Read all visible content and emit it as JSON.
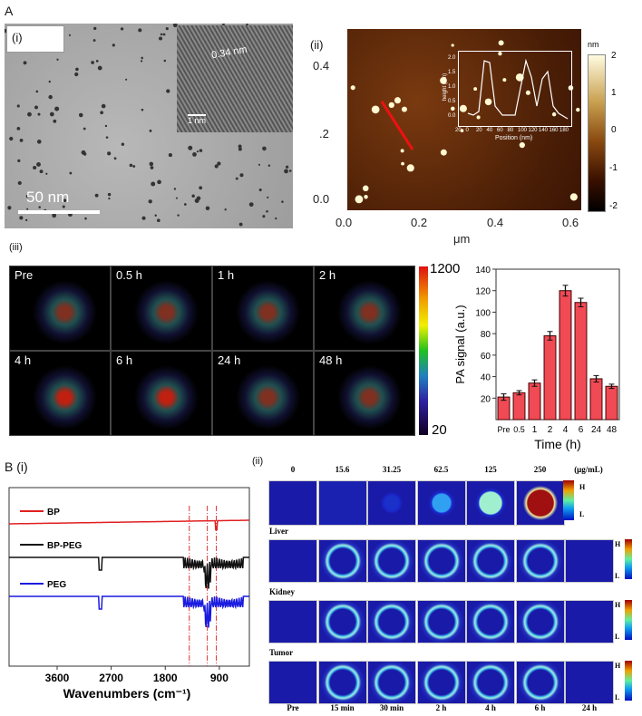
{
  "panel_a": {
    "label": "A",
    "tem": {
      "label": "(i)",
      "scale_bar": "50 nm",
      "inset_spacing": "0.34 nm",
      "inset_scale": "1 nm"
    },
    "afm": {
      "label": "(ii)",
      "y_ticks": [
        "0.4",
        ".2",
        "0.0"
      ],
      "x_ticks": [
        "0.0",
        "0.2",
        "0.4",
        "0.6"
      ],
      "x_unit": "μm",
      "colorbar_unit": "nm",
      "colorbar_ticks": [
        "2",
        "1",
        "0",
        "-1",
        "-2"
      ],
      "inset": {
        "ylabel": "height (nm)",
        "xlabel": "Position (nm)",
        "y_ticks": [
          "2.0",
          "1.5",
          "1.0",
          "0.5",
          "0.0"
        ],
        "x_ticks": [
          "20",
          "0",
          "20",
          "40",
          "60",
          "80",
          "100",
          "120",
          "140",
          "160",
          "180"
        ]
      }
    },
    "pa": {
      "label": "(iii)",
      "frames": [
        "Pre",
        "0.5 h",
        "1 h",
        "2 h",
        "4 h",
        "6 h",
        "24 h",
        "48 h"
      ],
      "colorbar_max": "1200",
      "colorbar_min": "20"
    }
  },
  "chart_data": [
    {
      "type": "bar",
      "categories": [
        "Pre",
        "0.5",
        "1",
        "2",
        "4",
        "6",
        "24",
        "48"
      ],
      "values": [
        21,
        25,
        34,
        78,
        120,
        109,
        38,
        31
      ],
      "errors": [
        3,
        2,
        3,
        4,
        5,
        4,
        3,
        2
      ],
      "xlabel": "Time (h)",
      "ylabel": "PA signal (a.u.)",
      "ylim": [
        0,
        140
      ],
      "y_ticks": [
        "20",
        "40",
        "60",
        "80",
        "100",
        "120",
        "140"
      ],
      "bar_color": "#f04a55"
    },
    {
      "type": "line",
      "xlabel": "Wavenumbers (cm⁻¹)",
      "x_ticks": [
        "3600",
        "2700",
        "1800",
        "900"
      ],
      "xlim": [
        4400,
        400
      ],
      "series": [
        {
          "name": "BP",
          "color": "#e02020"
        },
        {
          "name": "BP-PEG",
          "color": "#111111"
        },
        {
          "name": "PEG",
          "color": "#1a1ae0"
        }
      ],
      "reference_lines": [
        1400,
        1100,
        950
      ]
    }
  ],
  "panel_b": {
    "label": "B (i)",
    "imaging_label": "(ii)",
    "concentrations": [
      "0",
      "15.6",
      "31.25",
      "62.5",
      "125",
      "250"
    ],
    "concentration_unit": "(μg/mL)",
    "organs": [
      "Liver",
      "Kidney",
      "Tumor"
    ],
    "times": [
      "Pre",
      "15 min",
      "30 min",
      "2 h",
      "4 h",
      "6 h",
      "24 h"
    ],
    "scale_high": "H",
    "scale_low": "L"
  }
}
